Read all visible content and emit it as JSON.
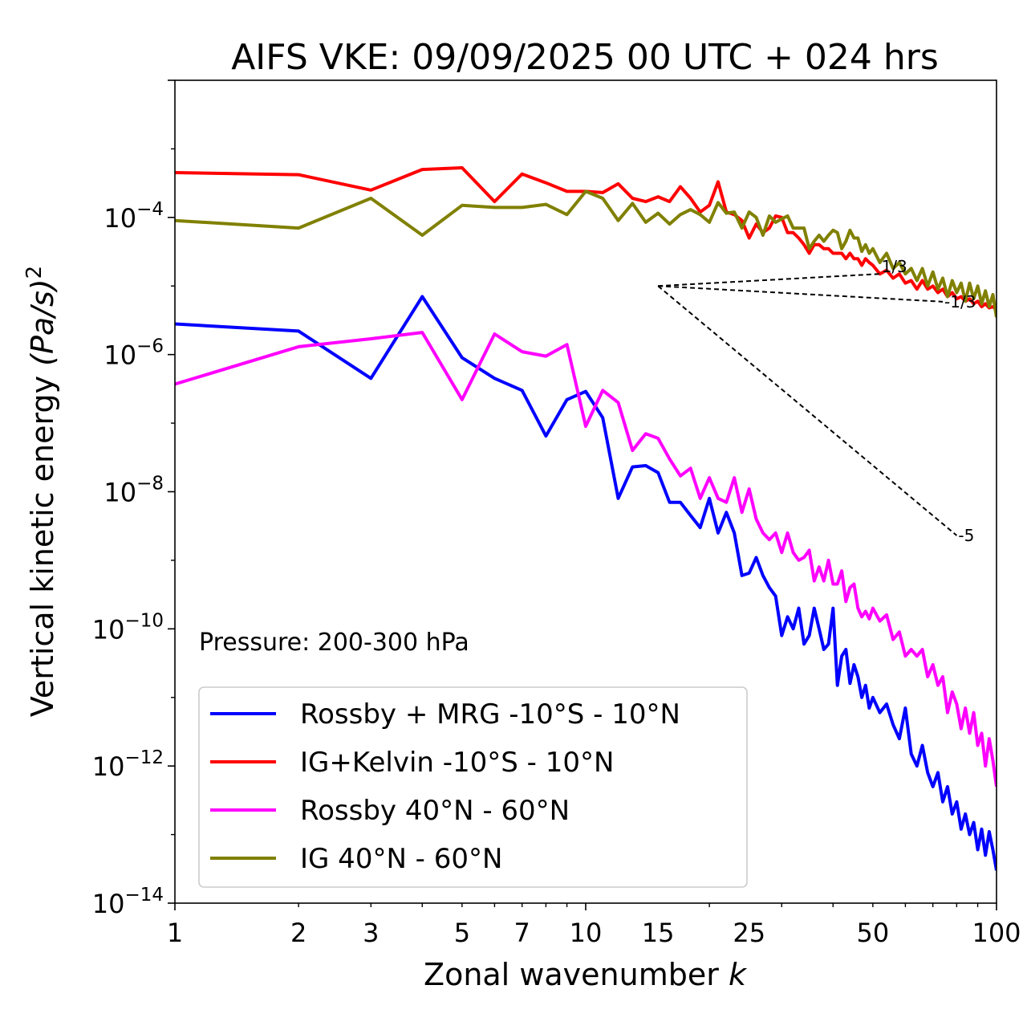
{
  "chart_data": {
    "type": "line",
    "title": "AIFS VKE: 09/09/2025 00 UTC + 024 hrs",
    "xlabel": "Zonal wavenumber k",
    "xlabel_text": "Zonal wavenumber ",
    "xlabel_var": "k",
    "ylabel_text": "Vertical kinetic energy ",
    "ylabel_units": "(Pa/s)",
    "ylabel_exp": "2",
    "xscale": "log",
    "yscale": "log",
    "xlim": [
      1,
      100
    ],
    "ylim": [
      1e-14,
      0.01
    ],
    "x_ticks": [
      {
        "value": 1,
        "label": "1"
      },
      {
        "value": 2,
        "label": "2"
      },
      {
        "value": 3,
        "label": "3"
      },
      {
        "value": 5,
        "label": "5"
      },
      {
        "value": 7,
        "label": "7"
      },
      {
        "value": 10,
        "label": "10"
      },
      {
        "value": 15,
        "label": "15"
      },
      {
        "value": 25,
        "label": "25"
      },
      {
        "value": 50,
        "label": "50"
      },
      {
        "value": 100,
        "label": "100"
      }
    ],
    "y_ticks": [
      {
        "value": 0.0001,
        "base": "10",
        "exp": "−4"
      },
      {
        "value": 1e-06,
        "base": "10",
        "exp": "−6"
      },
      {
        "value": 1e-08,
        "base": "10",
        "exp": "−8"
      },
      {
        "value": 1e-10,
        "base": "10",
        "exp": "−10"
      },
      {
        "value": 1e-12,
        "base": "10",
        "exp": "−12"
      },
      {
        "value": 1e-14,
        "base": "10",
        "exp": "−14"
      }
    ],
    "annotation": "Pressure: 200-300 hPa",
    "legend_position": "lower-left",
    "reference_slopes": [
      {
        "label": "1/3",
        "x": [
          15,
          52
        ],
        "y": [
          1e-05,
          1.5e-05
        ]
      },
      {
        "label": "-1/3",
        "x": [
          15,
          74
        ],
        "y": [
          1e-05,
          5.9e-06
        ]
      },
      {
        "label": "-5",
        "x": [
          15,
          80
        ],
        "y": [
          1e-05,
          2.3e-09
        ]
      }
    ],
    "series": [
      {
        "name": "Rossby + MRG -10°S - 10°N",
        "color": "#0000ff",
        "x": [
          1,
          2,
          3,
          4,
          5,
          6,
          7,
          8,
          9,
          10,
          11,
          12,
          13,
          14,
          15,
          16,
          17,
          18,
          19,
          20,
          21,
          22,
          23,
          24,
          25,
          26,
          27,
          28,
          29,
          30,
          31,
          32,
          33,
          34,
          35,
          36,
          37,
          38,
          39,
          40,
          41,
          42,
          43,
          44,
          45,
          46,
          47,
          48,
          49,
          50,
          52,
          54,
          56,
          58,
          60,
          62,
          64,
          66,
          68,
          70,
          72,
          74,
          76,
          78,
          80,
          82,
          84,
          86,
          88,
          90,
          92,
          94,
          96,
          98,
          100
        ],
        "y": [
          2.8e-06,
          2.2e-06,
          4.5e-07,
          7e-06,
          9e-07,
          4.5e-07,
          3e-07,
          6.5e-08,
          2.2e-07,
          2.9e-07,
          1.2e-07,
          8e-09,
          2.3e-08,
          2.4e-08,
          1.9e-08,
          7e-09,
          7e-09,
          4.5e-09,
          3e-09,
          8e-09,
          2.5e-09,
          5e-09,
          2.5e-09,
          6e-10,
          6.5e-10,
          1.1e-09,
          6e-10,
          4e-10,
          3e-10,
          8e-11,
          1.5e-10,
          1e-10,
          2e-10,
          6e-11,
          8e-11,
          2e-10,
          1e-10,
          5e-11,
          6e-11,
          2e-10,
          1.5e-11,
          4e-11,
          5e-11,
          1.6e-11,
          3e-11,
          2e-11,
          1e-11,
          1.5e-11,
          7e-12,
          1e-11,
          6e-12,
          8e-12,
          4e-12,
          2.5e-12,
          7e-12,
          1.5e-12,
          1e-12,
          2e-12,
          8e-13,
          5e-13,
          8e-13,
          3e-13,
          5e-13,
          2e-13,
          3e-13,
          1.2e-13,
          2e-13,
          1e-13,
          1.5e-13,
          6e-14,
          1.2e-13,
          5e-14,
          1.1e-13,
          6e-14,
          3e-14
        ]
      },
      {
        "name": "IG+Kelvin -10°S - 10°N",
        "color": "#ff0000",
        "x": [
          1,
          2,
          3,
          4,
          5,
          6,
          7,
          8,
          9,
          10,
          11,
          12,
          13,
          14,
          15,
          16,
          17,
          18,
          19,
          20,
          21,
          22,
          23,
          24,
          25,
          26,
          27,
          28,
          29,
          30,
          31,
          32,
          33,
          34,
          35,
          36,
          37,
          38,
          39,
          40,
          41,
          42,
          43,
          44,
          45,
          46,
          47,
          48,
          49,
          50,
          52,
          54,
          56,
          58,
          60,
          62,
          64,
          66,
          68,
          70,
          72,
          74,
          76,
          78,
          80,
          82,
          84,
          86,
          88,
          90,
          92,
          94,
          96,
          98,
          100
        ],
        "y": [
          0.00045,
          0.00042,
          0.00025,
          0.0005,
          0.00053,
          0.00017,
          0.00043,
          0.00032,
          0.00024,
          0.00024,
          0.00023,
          0.00031,
          0.00019,
          0.00017,
          0.0002,
          0.00017,
          0.00028,
          0.00019,
          0.00012,
          0.00015,
          0.00033,
          0.00012,
          0.00011,
          9e-05,
          5e-05,
          8e-05,
          6e-05,
          7e-05,
          0.000105,
          0.0001,
          6e-05,
          6e-05,
          5e-05,
          4e-05,
          3e-05,
          4e-05,
          4e-05,
          3.5e-05,
          3.5e-05,
          3e-05,
          3e-05,
          3e-05,
          2.5e-05,
          3e-05,
          2.5e-05,
          2.5e-05,
          2e-05,
          2.5e-05,
          2.2e-05,
          2e-05,
          1.5e-05,
          1.7e-05,
          1.3e-05,
          1.5e-05,
          1.1e-05,
          1.2e-05,
          9e-06,
          1.2e-05,
          9e-06,
          1e-05,
          8e-06,
          9e-06,
          7e-06,
          8e-06,
          6.5e-06,
          7e-06,
          6e-06,
          6.5e-06,
          5.5e-06,
          6e-06,
          5e-06,
          5.5e-06,
          4.8e-06,
          5e-06,
          4.5e-06
        ]
      },
      {
        "name": "Rossby 40°N - 60°N",
        "color": "#ff00ff",
        "x": [
          1,
          2,
          3,
          4,
          5,
          6,
          7,
          8,
          9,
          10,
          11,
          12,
          13,
          14,
          15,
          16,
          17,
          18,
          19,
          20,
          21,
          22,
          23,
          24,
          25,
          26,
          27,
          28,
          29,
          30,
          31,
          32,
          33,
          34,
          35,
          36,
          37,
          38,
          39,
          40,
          41,
          42,
          43,
          44,
          45,
          46,
          47,
          48,
          49,
          50,
          52,
          54,
          56,
          58,
          60,
          62,
          64,
          66,
          68,
          70,
          72,
          74,
          76,
          78,
          80,
          82,
          84,
          86,
          88,
          90,
          92,
          94,
          96,
          98,
          100
        ],
        "y": [
          3.7e-07,
          1.3e-06,
          1.7e-06,
          2.1e-06,
          2.2e-07,
          2e-06,
          1.1e-06,
          9.5e-07,
          1.4e-06,
          9e-08,
          3e-07,
          2e-07,
          4e-08,
          7e-08,
          6e-08,
          3e-08,
          1.7e-08,
          2.2e-08,
          8e-09,
          1.6e-08,
          8e-09,
          7e-09,
          1.6e-08,
          5e-09,
          1.1e-08,
          4e-09,
          2.5e-09,
          2e-09,
          2.5e-09,
          1.3e-09,
          2.5e-09,
          1.3e-09,
          1e-09,
          1.1e-09,
          1.4e-09,
          5e-10,
          8e-10,
          5e-10,
          1e-09,
          4.5e-10,
          4.5e-10,
          7e-10,
          2.5e-10,
          4e-10,
          4.5e-10,
          2e-10,
          1.5e-10,
          1.8e-10,
          1.4e-10,
          2e-10,
          1.3e-10,
          1.6e-10,
          7e-11,
          9e-11,
          4e-11,
          5e-11,
          4e-11,
          5e-11,
          2e-11,
          3e-11,
          1.5e-11,
          2e-11,
          6e-12,
          1.2e-11,
          8e-12,
          3.5e-12,
          7e-12,
          3e-12,
          6e-12,
          2e-12,
          3e-12,
          1e-12,
          2.5e-12,
          1.2e-12,
          5e-13
        ]
      },
      {
        "name": "IG 40°N - 60°N",
        "color": "#808000",
        "x": [
          1,
          2,
          3,
          4,
          5,
          6,
          7,
          8,
          9,
          10,
          11,
          12,
          13,
          14,
          15,
          16,
          17,
          18,
          19,
          20,
          21,
          22,
          23,
          24,
          25,
          26,
          27,
          28,
          29,
          30,
          31,
          32,
          33,
          34,
          35,
          36,
          37,
          38,
          39,
          40,
          41,
          42,
          43,
          44,
          45,
          46,
          47,
          48,
          49,
          50,
          52,
          54,
          56,
          58,
          60,
          62,
          64,
          66,
          68,
          70,
          72,
          74,
          76,
          78,
          80,
          82,
          84,
          86,
          88,
          90,
          92,
          94,
          96,
          98,
          100
        ],
        "y": [
          9e-05,
          7e-05,
          0.00019,
          5.5e-05,
          0.00015,
          0.00014,
          0.00014,
          0.000155,
          0.00011,
          0.00024,
          0.00019,
          9e-05,
          0.00016,
          8.5e-05,
          0.000115,
          8e-05,
          0.00011,
          0.00013,
          0.00011,
          8.5e-05,
          0.000165,
          0.000115,
          0.00012,
          7e-05,
          0.00012,
          0.0001,
          5.5e-05,
          0.000105,
          8.5e-05,
          9.5e-05,
          0.000105,
          7e-05,
          7e-05,
          7e-05,
          3.5e-05,
          4.5e-05,
          5.5e-05,
          4.5e-05,
          5.5e-05,
          6.5e-05,
          6e-05,
          3.5e-05,
          4.5e-05,
          6.5e-05,
          5e-05,
          5e-05,
          3.2e-05,
          4e-05,
          3e-05,
          3.5e-05,
          2.2e-05,
          3e-05,
          1.8e-05,
          2.2e-05,
          1.5e-05,
          1.8e-05,
          1.2e-05,
          1.8e-05,
          1e-05,
          1.6e-05,
          9e-06,
          1.3e-05,
          7e-06,
          1.2e-05,
          8e-06,
          1.1e-05,
          6e-06,
          1.1e-05,
          6.5e-06,
          1e-05,
          5.5e-06,
          8.5e-06,
          5e-06,
          7.5e-06,
          3.5e-06
        ]
      }
    ]
  }
}
